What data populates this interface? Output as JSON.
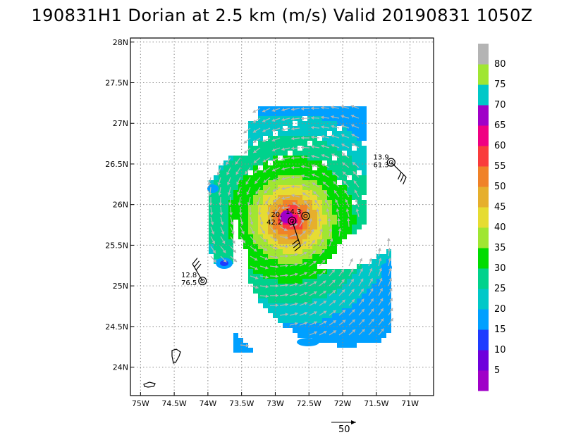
{
  "title": "190831H1 Dorian at 2.5 km (m/s) Valid 20190831  1050Z",
  "chart_data": {
    "type": "heatmap",
    "title": "190831H1 Dorian at 2.5 km (m/s) Valid 20190831  1050Z",
    "xlabel": "",
    "ylabel": "",
    "xlim": [
      -75.15,
      -70.65
    ],
    "ylim": [
      23.65,
      28.05
    ],
    "x_ticks": [
      "75W",
      "74.5W",
      "74W",
      "73.5W",
      "73W",
      "72.5W",
      "72W",
      "71.5W",
      "71W"
    ],
    "y_ticks": [
      "24N",
      "24.5N",
      "25N",
      "25.5N",
      "26N",
      "26.5N",
      "27N",
      "27.5N",
      "28N"
    ],
    "grid": true,
    "colorbar": {
      "labels": [
        "5",
        "10",
        "15",
        "20",
        "25",
        "30",
        "35",
        "40",
        "45",
        "50",
        "55",
        "60",
        "65",
        "70",
        "75",
        "80"
      ],
      "colors": [
        "#a000c8",
        "#6e00dc",
        "#1e3cff",
        "#00a0ff",
        "#00c8c8",
        "#00d28c",
        "#00dc00",
        "#a0e632",
        "#e6dc32",
        "#e6af2d",
        "#f08228",
        "#fa3c3c",
        "#f00082",
        "#a000c8",
        "#00c8c8",
        "#a0e632",
        "#b4b4b4"
      ]
    },
    "storm_center": {
      "lon": -72.8,
      "lat": 25.85
    },
    "observations": [
      {
        "speed": "13.9",
        "dir": "61.3",
        "lon": -71.28,
        "lat": 26.52
      },
      {
        "speed": "12.8",
        "dir": "76.5",
        "lon": -74.08,
        "lat": 25.06
      },
      {
        "speed": "20.",
        "dir": "42.2",
        "lon": -72.75,
        "lat": 25.8
      },
      {
        "speed": "14.3",
        "dir": "",
        "lon": -72.55,
        "lat": 25.86
      }
    ],
    "reference_vector": {
      "label": "50",
      "value": 50
    }
  }
}
